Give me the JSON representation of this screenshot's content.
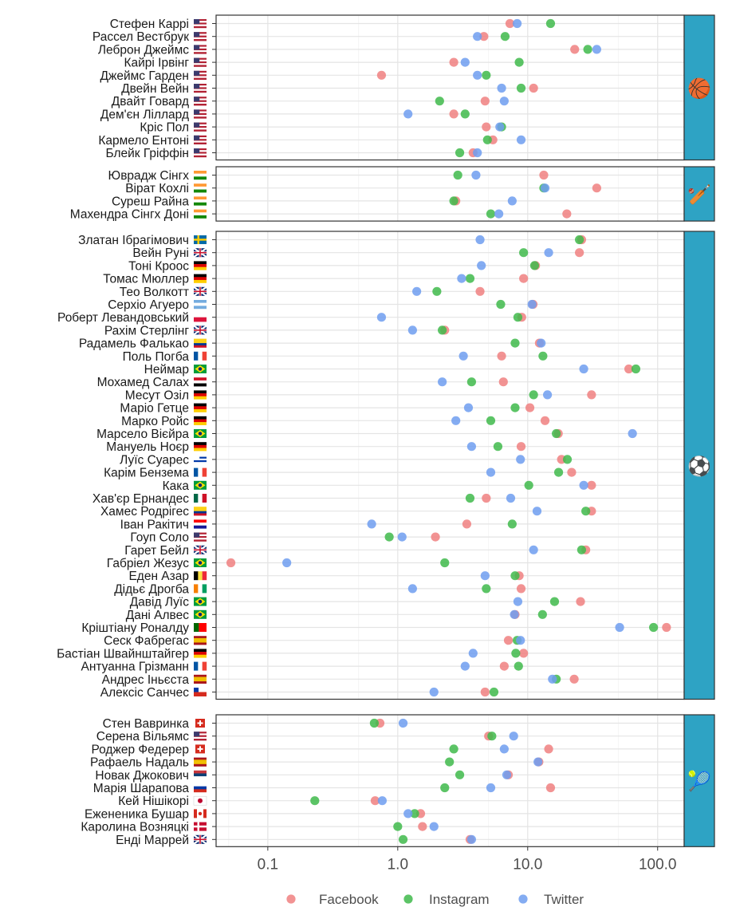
{
  "chart_data": {
    "type": "scatter",
    "x_scale": "log",
    "xlim": [
      0.04,
      160
    ],
    "x_ticks": [
      "0.1",
      "1.0",
      "10.0",
      "100.0"
    ],
    "x_tick_values": [
      0.1,
      1,
      10,
      100
    ],
    "legend": {
      "position": "bottom",
      "entries": [
        "Facebook",
        "Instagram",
        "Twitter"
      ]
    },
    "colors": {
      "Facebook": "#f08080",
      "Instagram": "#3fba4b",
      "Twitter": "#6e9ef0"
    },
    "panels": [
      {
        "sport": "basketball",
        "strip_icon": "🏀",
        "athletes": [
          {
            "name": "Стефен Каррі",
            "flag": "us-flag",
            "facebook": 7.3,
            "instagram": 15,
            "twitter": 8.3
          },
          {
            "name": "Рассел Вестбрук",
            "flag": "us-flag",
            "facebook": 4.6,
            "instagram": 6.7,
            "twitter": 4.1
          },
          {
            "name": "Леброн Джеймс",
            "flag": "us-flag",
            "facebook": 23,
            "instagram": 29,
            "twitter": 34
          },
          {
            "name": "Кайрі Ірвінг",
            "flag": "us-flag",
            "facebook": 2.7,
            "instagram": 8.6,
            "twitter": 3.3
          },
          {
            "name": "Джеймс Гарден",
            "flag": "us-flag",
            "facebook": 0.75,
            "instagram": 4.8,
            "twitter": 4.1
          },
          {
            "name": "Двейн Вейн",
            "flag": "us-flag",
            "facebook": 11.1,
            "instagram": 8.9,
            "twitter": 6.3
          },
          {
            "name": "Двайт Говард",
            "flag": "us-flag",
            "facebook": 4.7,
            "instagram": 2.1,
            "twitter": 6.6
          },
          {
            "name": "Дем'єн Ліллард",
            "flag": "us-flag",
            "facebook": 2.7,
            "instagram": 3.3,
            "twitter": 1.2
          },
          {
            "name": "Кріс Пол",
            "flag": "us-flag",
            "facebook": 4.8,
            "instagram": 6.3,
            "twitter": 6.1
          },
          {
            "name": "Кармело Ентоні",
            "flag": "us-flag",
            "facebook": 5.4,
            "instagram": 4.9,
            "twitter": 8.9
          },
          {
            "name": "Блейк Гріффін",
            "flag": "us-flag",
            "facebook": 3.8,
            "instagram": 3.0,
            "twitter": 4.1
          }
        ]
      },
      {
        "sport": "cricket",
        "strip_icon": "🏏",
        "athletes": [
          {
            "name": "Юврадж Сінгх",
            "flag": "india-flag",
            "facebook": 13.3,
            "instagram": 2.9,
            "twitter": 4.0
          },
          {
            "name": "Вірат Кохлі",
            "flag": "india-flag",
            "facebook": 34,
            "instagram": 13.3,
            "twitter": 13.6
          },
          {
            "name": "Суреш Райна",
            "flag": "india-flag",
            "facebook": 2.8,
            "instagram": 2.7,
            "twitter": 7.6
          },
          {
            "name": "Махендра Сінгх Доні",
            "flag": "india-flag",
            "facebook": 20,
            "instagram": 5.2,
            "twitter": 6.0
          }
        ]
      },
      {
        "sport": "football",
        "strip_icon": "⚽",
        "athletes": [
          {
            "name": "Златан Ібрагімович",
            "flag": "sweden-flag",
            "facebook": 26,
            "instagram": 25,
            "twitter": 4.3
          },
          {
            "name": "Вейн Руні",
            "flag": "uk-flag",
            "facebook": 25,
            "instagram": 9.3,
            "twitter": 14.5
          },
          {
            "name": "Тоні Кроос",
            "flag": "germany-flag",
            "facebook": 11.5,
            "instagram": 11.3,
            "twitter": 4.4
          },
          {
            "name": "Томас Мюллер",
            "flag": "germany-flag",
            "facebook": 9.3,
            "instagram": 3.6,
            "twitter": 3.1
          },
          {
            "name": "Тео Волкотт",
            "flag": "uk-flag",
            "facebook": 4.3,
            "instagram": 2.0,
            "twitter": 1.4
          },
          {
            "name": "Серхіо Агуеро",
            "flag": "argentina-flag",
            "facebook": 11,
            "instagram": 6.2,
            "twitter": 10.8
          },
          {
            "name": "Роберт Левандовський",
            "flag": "poland-flag",
            "facebook": 9.0,
            "instagram": 8.4,
            "twitter": 0.75
          },
          {
            "name": "Рахім Стерлінг",
            "flag": "uk-flag",
            "facebook": 2.3,
            "instagram": 2.2,
            "twitter": 1.3
          },
          {
            "name": "Радамель Фалькао",
            "flag": "colombia-flag",
            "facebook": 12.3,
            "instagram": 8.0,
            "twitter": 12.7
          },
          {
            "name": "Поль Погба",
            "flag": "france-flag",
            "facebook": 6.3,
            "instagram": 13.1,
            "twitter": 3.2
          },
          {
            "name": "Неймар",
            "flag": "brazil-flag",
            "facebook": 60,
            "instagram": 68,
            "twitter": 27
          },
          {
            "name": "Мохамед Салах",
            "flag": "egypt-flag",
            "facebook": 6.5,
            "instagram": 3.7,
            "twitter": 2.2
          },
          {
            "name": "Месут Озіл",
            "flag": "germany-flag",
            "facebook": 31,
            "instagram": 11.1,
            "twitter": 14.2
          },
          {
            "name": "Маріо Гетце",
            "flag": "germany-flag",
            "facebook": 10.4,
            "instagram": 8.0,
            "twitter": 3.5
          },
          {
            "name": "Марко Ройс",
            "flag": "germany-flag",
            "facebook": 13.6,
            "instagram": 5.2,
            "twitter": 2.8
          },
          {
            "name": "Марсело Вієйра",
            "flag": "brazil-flag",
            "facebook": 17.2,
            "instagram": 16.6,
            "twitter": 64
          },
          {
            "name": "Мануель Ноєр",
            "flag": "germany-flag",
            "facebook": 8.9,
            "instagram": 5.9,
            "twitter": 3.7
          },
          {
            "name": "Луїс Суарес",
            "flag": "uruguay-flag",
            "facebook": 18.2,
            "instagram": 20.2,
            "twitter": 8.8
          },
          {
            "name": "Карім Бензема",
            "flag": "france-flag",
            "facebook": 21.8,
            "instagram": 17.3,
            "twitter": 5.2
          },
          {
            "name": "Кака",
            "flag": "brazil-flag",
            "facebook": 31,
            "instagram": 10.2,
            "twitter": 27
          },
          {
            "name": "Хав'єр Ернандес",
            "flag": "mexico-flag",
            "facebook": 4.8,
            "instagram": 3.6,
            "twitter": 7.4
          },
          {
            "name": "Хамес Родрігес",
            "flag": "colombia-flag",
            "facebook": 31,
            "instagram": 28,
            "twitter": 11.8
          },
          {
            "name": "Іван Ракітич",
            "flag": "croatia-flag",
            "facebook": 3.4,
            "instagram": 7.6,
            "twitter": 0.63
          },
          {
            "name": "Гоуп Соло",
            "flag": "us-flag",
            "facebook": 1.95,
            "instagram": 0.86,
            "twitter": 1.08
          },
          {
            "name": "Гарет Бейл",
            "flag": "uk-flag",
            "facebook": 28,
            "instagram": 26,
            "twitter": 11.1
          },
          {
            "name": "Габріел Жезус",
            "flag": "brazil-flag",
            "facebook": 0.052,
            "instagram": 2.3,
            "twitter": 0.14
          },
          {
            "name": "Еден Азар",
            "flag": "belgium-flag",
            "facebook": 8.6,
            "instagram": 8.0,
            "twitter": 4.7
          },
          {
            "name": "Дідьє Дрогба",
            "flag": "ivory-coast-flag",
            "facebook": 8.9,
            "instagram": 4.8,
            "twitter": 1.3
          },
          {
            "name": "Давід Луїс",
            "flag": "brazil-flag",
            "facebook": 25.5,
            "instagram": 16.1,
            "twitter": 8.4
          },
          {
            "name": "Дані Алвес",
            "flag": "brazil-flag",
            "facebook": 8.0,
            "instagram": 13.0,
            "twitter": 7.9
          },
          {
            "name": "Кріштіану Роналду",
            "flag": "portugal-flag",
            "facebook": 117,
            "instagram": 93,
            "twitter": 51
          },
          {
            "name": "Сеск Фабрегас",
            "flag": "spain-flag",
            "facebook": 7.1,
            "instagram": 8.3,
            "twitter": 8.8
          },
          {
            "name": "Бастіан Швайнштайгер",
            "flag": "germany-flag",
            "facebook": 9.3,
            "instagram": 8.1,
            "twitter": 3.8
          },
          {
            "name": "Антуанна Грізманн",
            "flag": "france-flag",
            "facebook": 6.6,
            "instagram": 8.5,
            "twitter": 3.3
          },
          {
            "name": "Андрес Іньєста",
            "flag": "spain-flag",
            "facebook": 22.8,
            "instagram": 16.6,
            "twitter": 15.5
          },
          {
            "name": "Алексіс Санчес",
            "flag": "chile-flag",
            "facebook": 4.7,
            "instagram": 5.5,
            "twitter": 1.9
          }
        ]
      },
      {
        "sport": "tennis",
        "strip_icon": "🎾",
        "athletes": [
          {
            "name": "Стен Вавринка",
            "flag": "switzerland-flag",
            "facebook": 0.73,
            "instagram": 0.66,
            "twitter": 1.1
          },
          {
            "name": "Серена Вільямс",
            "flag": "us-flag",
            "facebook": 5.0,
            "instagram": 5.3,
            "twitter": 7.8
          },
          {
            "name": "Роджер Федерер",
            "flag": "switzerland-flag",
            "facebook": 14.5,
            "instagram": 2.7,
            "twitter": 6.6
          },
          {
            "name": "Рафаель Надаль",
            "flag": "spain-flag",
            "facebook": 12.2,
            "instagram": 2.5,
            "twitter": 12.0
          },
          {
            "name": "Новак Джокович",
            "flag": "serbia-flag",
            "facebook": 7.1,
            "instagram": 3.0,
            "twitter": 6.9
          },
          {
            "name": "Марія Шарапова",
            "flag": "russia-flag",
            "facebook": 15,
            "instagram": 2.3,
            "twitter": 5.2
          },
          {
            "name": "Кей Нішікорі",
            "flag": "japan-flag",
            "facebook": 0.67,
            "instagram": 0.23,
            "twitter": 0.76
          },
          {
            "name": "Ежененика Бушар",
            "flag": "canada-flag",
            "facebook": 1.5,
            "instagram": 1.35,
            "twitter": 1.2
          },
          {
            "name": "Каролина Возняцкі",
            "flag": "denmark-flag",
            "facebook": 1.55,
            "instagram": 1.0,
            "twitter": 1.9
          },
          {
            "name": "Енді Маррей",
            "flag": "uk-flag",
            "facebook": 3.6,
            "instagram": 1.1,
            "twitter": 3.7
          }
        ]
      }
    ]
  }
}
